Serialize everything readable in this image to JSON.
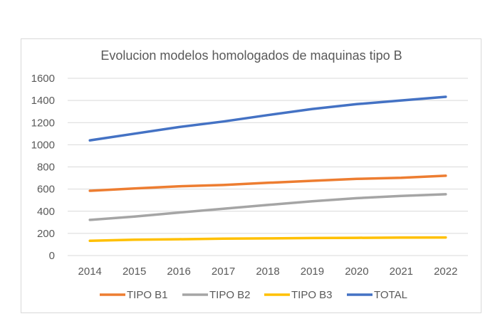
{
  "chart_data": {
    "type": "line",
    "title": "Evolucion modelos homologados de maquinas tipo B",
    "xlabel": "",
    "ylabel": "",
    "categories": [
      "2014",
      "2015",
      "2016",
      "2017",
      "2018",
      "2019",
      "2020",
      "2021",
      "2022"
    ],
    "ylim": [
      0,
      1600
    ],
    "yticks": [
      0,
      200,
      400,
      600,
      800,
      1000,
      1200,
      1400,
      1600
    ],
    "grid": true,
    "legend_position": "bottom",
    "series": [
      {
        "name": "TIPO B1",
        "color": "#ED7D31",
        "values": [
          585,
          605,
          625,
          637,
          657,
          675,
          692,
          702,
          720
        ]
      },
      {
        "name": "TIPO B2",
        "color": "#A5A5A5",
        "values": [
          322,
          352,
          388,
          422,
          457,
          490,
          518,
          538,
          553
        ]
      },
      {
        "name": "TIPO B3",
        "color": "#FFC000",
        "values": [
          133,
          143,
          147,
          152,
          155,
          158,
          160,
          162,
          163
        ]
      },
      {
        "name": "TOTAL",
        "color": "#4472C4",
        "values": [
          1040,
          1100,
          1160,
          1210,
          1268,
          1323,
          1367,
          1400,
          1433
        ]
      }
    ]
  }
}
